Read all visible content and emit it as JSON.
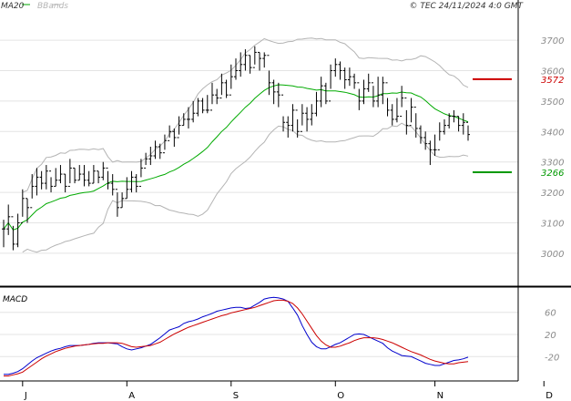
{
  "header": {
    "ma_label": "MA20",
    "bb_label": "BBands",
    "copyright": "© TEC 24/11/2024 4:0 GMT"
  },
  "macd_label": "MACD",
  "colors": {
    "ma": "#00aa00",
    "bands": "#b4b4b4",
    "bars": "#000000",
    "resistance": "#cc0000",
    "support": "#009900",
    "macd": "#0000cc",
    "signal": "#cc0000",
    "grid": "#e4e4e4",
    "axis": "#000000"
  },
  "chart_data": [
    {
      "type": "ohlc",
      "x_ticks": [
        "J",
        "A",
        "S",
        "O",
        "N",
        "D"
      ],
      "y_ticks": [
        3000,
        3100,
        3200,
        3300,
        3400,
        3500,
        3600,
        3700
      ],
      "ylim": [
        2895,
        3790
      ],
      "grid": true,
      "levels": [
        {
          "value": 3572,
          "label": "3572",
          "role": "resistance"
        },
        {
          "value": 3266,
          "label": "3266",
          "role": "support"
        }
      ],
      "close": [
        3080,
        3120,
        3030,
        3100,
        3180,
        3150,
        3220,
        3250,
        3230,
        3270,
        3220,
        3240,
        3260,
        3220,
        3280,
        3240,
        3260,
        3240,
        3230,
        3270,
        3250,
        3280,
        3230,
        3210,
        3150,
        3180,
        3210,
        3250,
        3220,
        3280,
        3310,
        3320,
        3350,
        3330,
        3370,
        3400,
        3380,
        3420,
        3440,
        3440,
        3460,
        3500,
        3470,
        3470,
        3520,
        3510,
        3560,
        3520,
        3580,
        3600,
        3620,
        3650,
        3610,
        3660,
        3640,
        3650,
        3560,
        3530,
        3520,
        3430,
        3420,
        3470,
        3400,
        3460,
        3440,
        3460,
        3500,
        3550,
        3500,
        3600,
        3620,
        3600,
        3570,
        3580,
        3560,
        3500,
        3540,
        3560,
        3500,
        3520,
        3560,
        3470,
        3440,
        3450,
        3510,
        3420,
        3480,
        3410,
        3380,
        3360,
        3340,
        3340,
        3400,
        3420,
        3450,
        3450,
        3420,
        3430,
        3390
      ],
      "high": [
        3110,
        3160,
        3090,
        3130,
        3210,
        3180,
        3260,
        3280,
        3270,
        3290,
        3250,
        3280,
        3290,
        3260,
        3310,
        3280,
        3290,
        3290,
        3270,
        3290,
        3270,
        3300,
        3270,
        3260,
        3200,
        3200,
        3250,
        3270,
        3260,
        3310,
        3330,
        3350,
        3370,
        3360,
        3390,
        3420,
        3410,
        3450,
        3460,
        3480,
        3500,
        3510,
        3510,
        3520,
        3560,
        3540,
        3590,
        3570,
        3620,
        3640,
        3660,
        3670,
        3650,
        3680,
        3660,
        3660,
        3600,
        3570,
        3560,
        3450,
        3450,
        3490,
        3440,
        3490,
        3480,
        3490,
        3530,
        3580,
        3560,
        3620,
        3640,
        3630,
        3610,
        3610,
        3590,
        3540,
        3570,
        3590,
        3550,
        3580,
        3580,
        3510,
        3490,
        3510,
        3550,
        3470,
        3510,
        3460,
        3420,
        3400,
        3370,
        3390,
        3430,
        3440,
        3460,
        3470,
        3450,
        3460,
        3420
      ],
      "low": [
        3020,
        3060,
        3010,
        3020,
        3120,
        3100,
        3180,
        3190,
        3210,
        3210,
        3200,
        3220,
        3230,
        3200,
        3230,
        3230,
        3240,
        3220,
        3220,
        3230,
        3230,
        3240,
        3210,
        3190,
        3120,
        3150,
        3180,
        3200,
        3200,
        3250,
        3290,
        3290,
        3310,
        3310,
        3340,
        3380,
        3350,
        3390,
        3420,
        3410,
        3430,
        3450,
        3460,
        3460,
        3490,
        3490,
        3520,
        3510,
        3540,
        3570,
        3580,
        3600,
        3590,
        3620,
        3600,
        3610,
        3520,
        3490,
        3480,
        3400,
        3380,
        3400,
        3380,
        3420,
        3400,
        3420,
        3450,
        3480,
        3490,
        3540,
        3580,
        3570,
        3540,
        3550,
        3540,
        3470,
        3490,
        3530,
        3480,
        3480,
        3490,
        3450,
        3420,
        3430,
        3480,
        3390,
        3430,
        3380,
        3360,
        3340,
        3290,
        3320,
        3370,
        3390,
        3410,
        3430,
        3400,
        3390,
        3370
      ]
    },
    {
      "type": "line",
      "ylabel": "MACD",
      "y_ticks": [
        60,
        20,
        -20
      ],
      "ylim": [
        -64,
        104
      ],
      "series": [
        {
          "values": [
            -52,
            -52,
            -50,
            -47,
            -42,
            -35,
            -28,
            -22,
            -18,
            -14,
            -10,
            -7,
            -5,
            -2,
            0,
            0,
            0,
            1,
            2,
            4,
            5,
            5,
            5,
            4,
            3,
            -2,
            -6,
            -8,
            -6,
            -4,
            -1,
            2,
            8,
            14,
            21,
            28,
            31,
            34,
            40,
            43,
            45,
            48,
            52,
            55,
            58,
            62,
            64,
            66,
            68,
            69,
            69,
            67,
            68,
            73,
            78,
            84,
            86,
            87,
            86,
            84,
            80,
            68,
            55,
            36,
            20,
            6,
            -2,
            -6,
            -6,
            -2,
            2,
            5,
            10,
            15,
            20,
            21,
            20,
            16,
            12,
            8,
            4,
            -4,
            -10,
            -14,
            -18,
            -19,
            -20,
            -24,
            -28,
            -32,
            -34,
            -36,
            -36,
            -33,
            -30,
            -27,
            -26,
            -24,
            -21
          ]
        },
        {
          "values": [
            -55,
            -55,
            -53,
            -51,
            -48,
            -42,
            -36,
            -30,
            -24,
            -19,
            -15,
            -11,
            -8,
            -5,
            -3,
            -1,
            0,
            1,
            2,
            3,
            4,
            4,
            5,
            5,
            5,
            4,
            1,
            -2,
            -3,
            -2,
            -1,
            0,
            3,
            6,
            11,
            16,
            21,
            25,
            29,
            33,
            36,
            39,
            42,
            45,
            48,
            51,
            54,
            56,
            59,
            61,
            63,
            65,
            67,
            69,
            72,
            75,
            78,
            81,
            82,
            82,
            80,
            76,
            68,
            57,
            44,
            31,
            18,
            8,
            1,
            -3,
            -3,
            -1,
            2,
            5,
            9,
            12,
            14,
            14,
            14,
            13,
            11,
            8,
            5,
            1,
            -3,
            -7,
            -11,
            -14,
            -17,
            -21,
            -25,
            -28,
            -30,
            -32,
            -33,
            -33,
            -31,
            -30,
            -29
          ]
        }
      ]
    }
  ]
}
